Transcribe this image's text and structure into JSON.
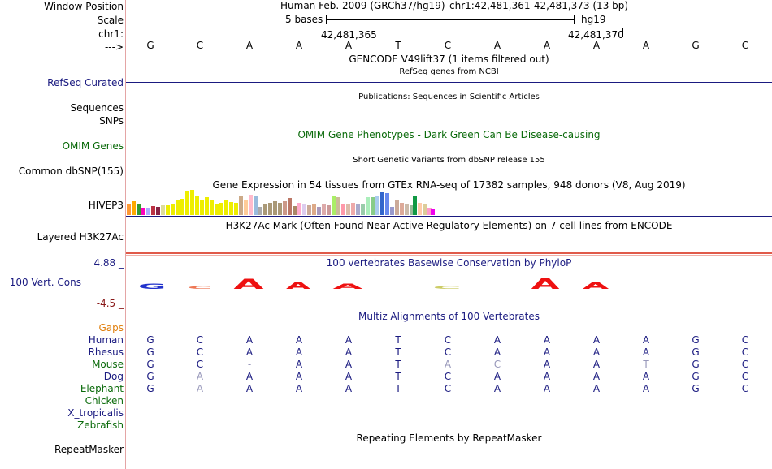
{
  "labels": {
    "window_position": "Window Position",
    "scale": "Scale",
    "chr": "chr1:",
    "strand": "--->",
    "refseq": "RefSeq Curated",
    "sequences": "Sequences",
    "snps": "SNPs",
    "omim": "OMIM Genes",
    "dbsnp": "Common dbSNP(155)",
    "hivep3": "HIVEP3",
    "h3k27ac": "Layered H3K27Ac",
    "cons_max": "4.88 _",
    "cons": "100 Vert. Cons",
    "cons_min": "-4.5 _",
    "gaps": "Gaps",
    "human": "Human",
    "rhesus": "Rhesus",
    "mouse": "Mouse",
    "dog": "Dog",
    "elephant": "Elephant",
    "chicken": "Chicken",
    "xtrop": "X_tropicalis",
    "zebrafish": "Zebrafish",
    "repeatmasker": "RepeatMasker"
  },
  "header": {
    "assembly": "Human Feb. 2009 (GRCh37/hg19)",
    "position": "chr1:42,481,361-42,481,373 (13 bp)",
    "scale_text": "5 bases",
    "scale_db": "hg19",
    "coord1": "42,481,365",
    "coord2": "42,481,370"
  },
  "sequence": [
    "G",
    "C",
    "A",
    "A",
    "A",
    "T",
    "C",
    "A",
    "A",
    "A",
    "A",
    "G",
    "C"
  ],
  "tracks": {
    "gencode": "GENCODE V49lift37 (1 items filtered out)",
    "refseq": "RefSeq genes from NCBI",
    "publications": "Publications: Sequences in Scientific Articles",
    "omim": "OMIM Gene Phenotypes - Dark Green Can Be Disease-causing",
    "dbsnp": "Short Genetic Variants from dbSNP release 155",
    "gtex": "Gene Expression in 54 tissues from GTEx RNA-seq of 17382 samples, 948 donors (V8, Aug 2019)",
    "h3k27ac": "H3K27Ac Mark (Often Found Near Active Regulatory Elements) on 7 cell lines from ENCODE",
    "phylop": "100 vertebrates Basewise Conservation by PhyloP",
    "multiz": "Multiz Alignments of 100 Vertebrates",
    "repeatmasker": "Repeating Elements by RepeatMasker"
  },
  "alignment": {
    "human": [
      "G",
      "C",
      "A",
      "A",
      "A",
      "T",
      "C",
      "A",
      "A",
      "A",
      "A",
      "G",
      "C"
    ],
    "rhesus": [
      "G",
      "C",
      "A",
      "A",
      "A",
      "T",
      "C",
      "A",
      "A",
      "A",
      "A",
      "G",
      "C"
    ],
    "mouse": [
      "G",
      "C",
      "-",
      "A",
      "A",
      "T",
      "A",
      "C",
      "A",
      "A",
      "T",
      "G",
      "C"
    ],
    "dog": [
      "G",
      "A",
      "A",
      "A",
      "A",
      "T",
      "C",
      "A",
      "A",
      "A",
      "A",
      "G",
      "C"
    ],
    "elephant": [
      "G",
      "A",
      "A",
      "A",
      "A",
      "T",
      "C",
      "A",
      "A",
      "A",
      "A",
      "G",
      "C"
    ]
  },
  "colors": {
    "label_blue": "#1a1a80",
    "label_green": "#0a6a0a",
    "gaps_orange": "#e08010",
    "cons_red": "#8a1a1a",
    "separator": "#e4a5a5"
  }
}
